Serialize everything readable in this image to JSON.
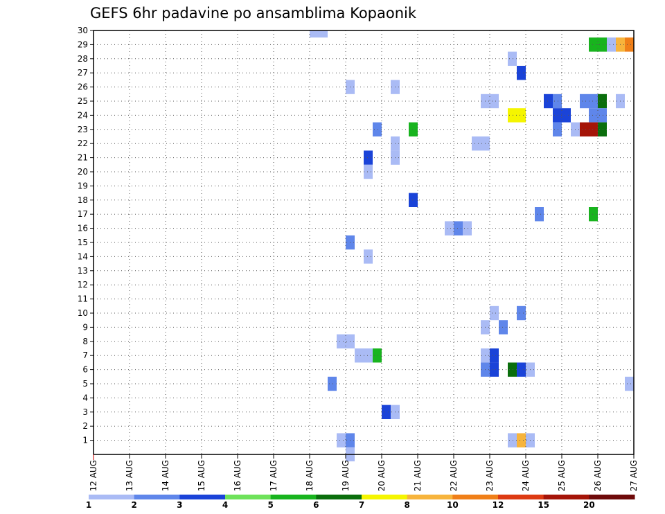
{
  "chart_data": {
    "type": "heatmap",
    "title": "GEFS 6hr padavine po ansamblima Kopaonik",
    "xlabel": "",
    "ylabel": "",
    "x_ticks": [
      "12 AUG",
      "13 AUG",
      "14 AUG",
      "15 AUG",
      "16 AUG",
      "17 AUG",
      "18 AUG",
      "19 AUG",
      "20 AUG",
      "21 AUG",
      "22 AUG",
      "23 AUG",
      "24 AUG",
      "25 AUG",
      "26 AUG",
      "27 AUG"
    ],
    "y_ticks": [
      "1",
      "2",
      "3",
      "4",
      "5",
      "6",
      "7",
      "8",
      "9",
      "10",
      "11",
      "12",
      "13",
      "14",
      "15",
      "16",
      "17",
      "18",
      "19",
      "20",
      "21",
      "22",
      "23",
      "24",
      "25",
      "26",
      "27",
      "28",
      "29",
      "30"
    ],
    "x_range_days": [
      0,
      15
    ],
    "y_range_members": [
      0,
      30
    ],
    "grid": "dotted",
    "colorbar": {
      "labels": [
        "1",
        "2",
        "3",
        "4",
        "5",
        "6",
        "7",
        "8",
        "10",
        "12",
        "15",
        "20"
      ],
      "colors": [
        "#aabbf5",
        "#5f86ea",
        "#1a43d8",
        "#6ee25a",
        "#18b41e",
        "#0a6e0c",
        "#f5f500",
        "#f7b43c",
        "#f07f18",
        "#dd3a12",
        "#a51408",
        "#6e0a0a"
      ]
    },
    "cells": [
      {
        "day": 6.0,
        "member": 30,
        "value": 1
      },
      {
        "day": 6.25,
        "member": 30,
        "value": 1
      },
      {
        "day": 13.75,
        "member": 29,
        "value": 5
      },
      {
        "day": 14.0,
        "member": 29,
        "value": 5
      },
      {
        "day": 14.25,
        "member": 29,
        "value": 1
      },
      {
        "day": 14.5,
        "member": 29,
        "value": 8
      },
      {
        "day": 14.75,
        "member": 29,
        "value": 10
      },
      {
        "day": 11.5,
        "member": 28,
        "value": 1
      },
      {
        "day": 11.75,
        "member": 27,
        "value": 3
      },
      {
        "day": 7.0,
        "member": 26,
        "value": 1
      },
      {
        "day": 8.25,
        "member": 26,
        "value": 1
      },
      {
        "day": 10.75,
        "member": 25,
        "value": 1
      },
      {
        "day": 11.0,
        "member": 25,
        "value": 1
      },
      {
        "day": 12.5,
        "member": 25,
        "value": 3
      },
      {
        "day": 12.75,
        "member": 25,
        "value": 2
      },
      {
        "day": 13.5,
        "member": 25,
        "value": 2
      },
      {
        "day": 13.75,
        "member": 25,
        "value": 2
      },
      {
        "day": 14.0,
        "member": 25,
        "value": 6
      },
      {
        "day": 14.5,
        "member": 25,
        "value": 1
      },
      {
        "day": 11.5,
        "member": 24,
        "value": 7
      },
      {
        "day": 11.75,
        "member": 24,
        "value": 7
      },
      {
        "day": 12.75,
        "member": 24,
        "value": 3
      },
      {
        "day": 13.0,
        "member": 24,
        "value": 3
      },
      {
        "day": 13.75,
        "member": 24,
        "value": 2
      },
      {
        "day": 14.0,
        "member": 24,
        "value": 2
      },
      {
        "day": 7.75,
        "member": 23,
        "value": 2
      },
      {
        "day": 8.75,
        "member": 23,
        "value": 5
      },
      {
        "day": 12.75,
        "member": 23,
        "value": 2
      },
      {
        "day": 13.25,
        "member": 23,
        "value": 1
      },
      {
        "day": 13.5,
        "member": 23,
        "value": 15
      },
      {
        "day": 13.75,
        "member": 23,
        "value": 15
      },
      {
        "day": 14.0,
        "member": 23,
        "value": 6
      },
      {
        "day": 8.25,
        "member": 22,
        "value": 1
      },
      {
        "day": 10.5,
        "member": 22,
        "value": 1
      },
      {
        "day": 10.75,
        "member": 22,
        "value": 1
      },
      {
        "day": 7.5,
        "member": 21,
        "value": 3
      },
      {
        "day": 8.25,
        "member": 21,
        "value": 1
      },
      {
        "day": 7.5,
        "member": 20,
        "value": 1
      },
      {
        "day": 8.75,
        "member": 18,
        "value": 3
      },
      {
        "day": 12.25,
        "member": 17,
        "value": 2
      },
      {
        "day": 13.75,
        "member": 17,
        "value": 5
      },
      {
        "day": 9.75,
        "member": 16,
        "value": 1
      },
      {
        "day": 10.0,
        "member": 16,
        "value": 2
      },
      {
        "day": 10.25,
        "member": 16,
        "value": 1
      },
      {
        "day": 7.0,
        "member": 15,
        "value": 2
      },
      {
        "day": 7.5,
        "member": 14,
        "value": 1
      },
      {
        "day": 11.0,
        "member": 10,
        "value": 1
      },
      {
        "day": 11.75,
        "member": 10,
        "value": 2
      },
      {
        "day": 10.75,
        "member": 9,
        "value": 1
      },
      {
        "day": 11.25,
        "member": 9,
        "value": 2
      },
      {
        "day": 6.75,
        "member": 8,
        "value": 1
      },
      {
        "day": 7.0,
        "member": 8,
        "value": 1
      },
      {
        "day": 7.25,
        "member": 7,
        "value": 1
      },
      {
        "day": 7.5,
        "member": 7,
        "value": 1
      },
      {
        "day": 7.75,
        "member": 7,
        "value": 5
      },
      {
        "day": 10.75,
        "member": 7,
        "value": 1
      },
      {
        "day": 11.0,
        "member": 7,
        "value": 3
      },
      {
        "day": 10.75,
        "member": 6,
        "value": 2
      },
      {
        "day": 11.0,
        "member": 6,
        "value": 3
      },
      {
        "day": 11.5,
        "member": 6,
        "value": 6
      },
      {
        "day": 11.75,
        "member": 6,
        "value": 3
      },
      {
        "day": 12.0,
        "member": 6,
        "value": 1
      },
      {
        "day": 6.5,
        "member": 5,
        "value": 2
      },
      {
        "day": 14.75,
        "member": 5,
        "value": 1
      },
      {
        "day": 8.0,
        "member": 3,
        "value": 3
      },
      {
        "day": 8.25,
        "member": 3,
        "value": 1
      },
      {
        "day": 6.75,
        "member": 1,
        "value": 1
      },
      {
        "day": 7.0,
        "member": 1,
        "value": 2
      },
      {
        "day": 11.5,
        "member": 1,
        "value": 1
      },
      {
        "day": 11.75,
        "member": 1,
        "value": 8
      },
      {
        "day": 12.0,
        "member": 1,
        "value": 1
      },
      {
        "day": 7.0,
        "member": 0,
        "value": 1
      }
    ]
  }
}
